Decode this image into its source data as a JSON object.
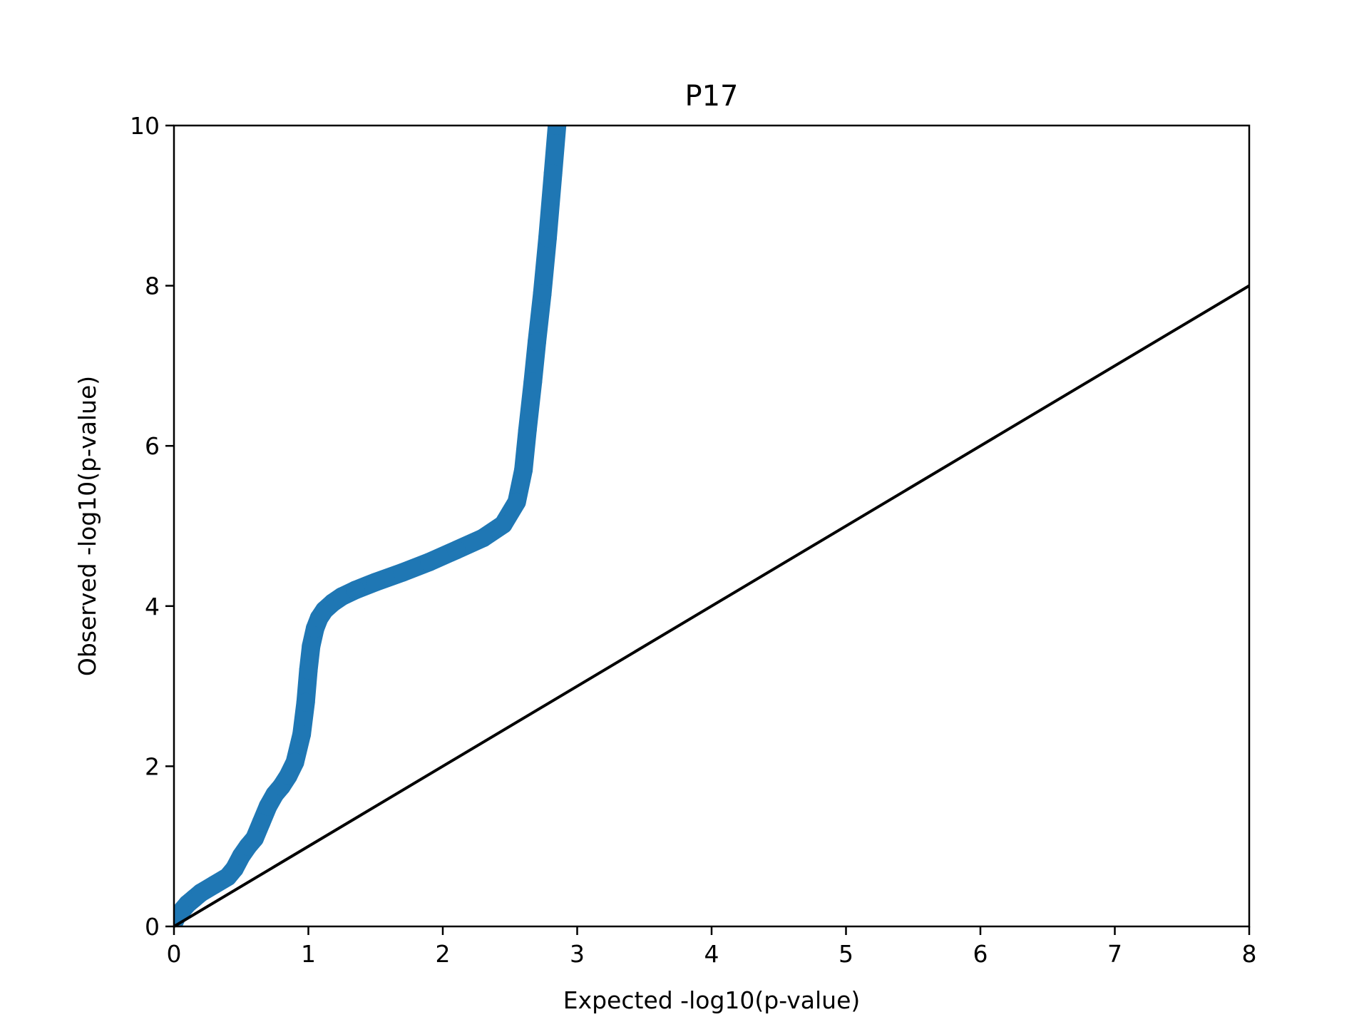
{
  "chart_data": {
    "type": "scatter",
    "title": "P17",
    "xlabel": "Expected -log10(p-value)",
    "ylabel": "Observed -log10(p-value)",
    "xlim": [
      0,
      8
    ],
    "ylim": [
      0,
      10
    ],
    "xticks": [
      "0",
      "1",
      "2",
      "3",
      "4",
      "5",
      "6",
      "7",
      "8"
    ],
    "yticks": [
      "0",
      "2",
      "4",
      "6",
      "8",
      "10"
    ],
    "grid": false,
    "legend": "none",
    "series": [
      {
        "kind": "points",
        "color": "#1f77b4",
        "x": [
          0.0,
          0.02,
          0.05,
          0.1,
          0.15,
          0.2,
          0.3,
          0.4,
          0.45,
          0.5,
          0.55,
          0.6,
          0.65,
          0.7,
          0.75,
          0.8,
          0.85,
          0.9,
          0.95,
          0.98,
          1.0,
          1.02,
          1.05,
          1.08,
          1.12,
          1.18,
          1.25,
          1.35,
          1.5,
          1.7,
          1.9,
          2.1,
          2.3,
          2.45,
          2.55,
          2.6,
          2.63,
          2.67,
          2.7,
          2.74,
          2.78,
          2.82,
          2.85
        ],
        "y": [
          0.05,
          0.12,
          0.18,
          0.28,
          0.35,
          0.42,
          0.52,
          0.62,
          0.72,
          0.88,
          1.0,
          1.1,
          1.3,
          1.5,
          1.65,
          1.75,
          1.88,
          2.05,
          2.4,
          2.8,
          3.2,
          3.5,
          3.72,
          3.85,
          3.95,
          4.04,
          4.12,
          4.2,
          4.3,
          4.42,
          4.55,
          4.7,
          4.85,
          5.02,
          5.3,
          5.7,
          6.2,
          6.8,
          7.3,
          7.9,
          8.6,
          9.4,
          10.0
        ]
      },
      {
        "kind": "reference-line",
        "color": "#000000",
        "x": [
          0,
          8
        ],
        "y": [
          0,
          8
        ]
      }
    ]
  }
}
